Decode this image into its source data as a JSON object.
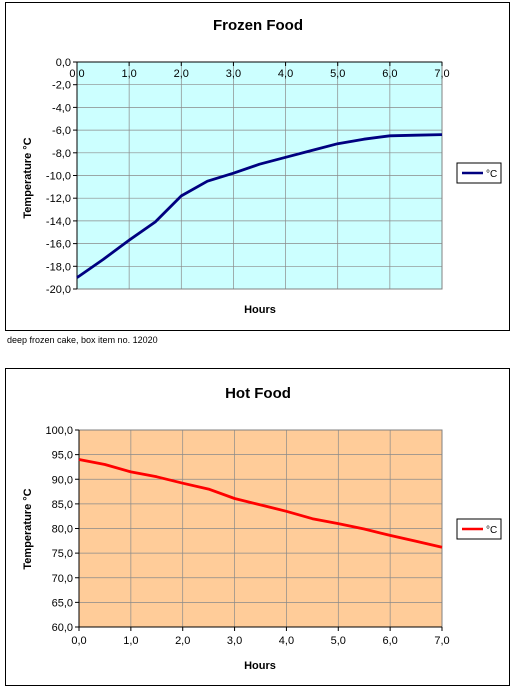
{
  "caption": "deep frozen cake, box item no. 12020",
  "chart_data": [
    {
      "type": "line",
      "title": "Frozen Food",
      "xlabel": "Hours",
      "ylabel": "Temperature °C",
      "xlim": [
        0,
        7
      ],
      "ylim": [
        -20,
        0
      ],
      "x_ticks": [
        "0,0",
        "1,0",
        "2,0",
        "3,0",
        "4,0",
        "5,0",
        "6,0",
        "7,0"
      ],
      "y_ticks": [
        "0,0",
        "-2,0",
        "-4,0",
        "-6,0",
        "-8,0",
        "-10,0",
        "-12,0",
        "-14,0",
        "-16,0",
        "-18,0",
        "-20,0"
      ],
      "x_axis_position": "top",
      "grid": true,
      "plot_background": "#ccffff",
      "legend_position": "right",
      "series": [
        {
          "name": "°C",
          "color": "#000080",
          "x": [
            0,
            0.5,
            1.0,
            1.5,
            2.0,
            2.5,
            3.0,
            3.5,
            4.0,
            4.5,
            5.0,
            5.5,
            6.0,
            6.5,
            7.0
          ],
          "y": [
            -19.0,
            -17.4,
            -15.7,
            -14.1,
            -11.8,
            -10.5,
            -9.8,
            -9.0,
            -8.4,
            -7.8,
            -7.2,
            -6.8,
            -6.5,
            -6.45,
            -6.4
          ]
        }
      ]
    },
    {
      "type": "line",
      "title": "Hot Food",
      "xlabel": "Hours",
      "ylabel": "Temperature °C",
      "xlim": [
        0,
        7
      ],
      "ylim": [
        60,
        100
      ],
      "x_ticks": [
        "0,0",
        "1,0",
        "2,0",
        "3,0",
        "4,0",
        "5,0",
        "6,0",
        "7,0"
      ],
      "y_ticks": [
        "100,0",
        "95,0",
        "90,0",
        "85,0",
        "80,0",
        "75,0",
        "70,0",
        "65,0",
        "60,0"
      ],
      "x_axis_position": "bottom",
      "grid": true,
      "plot_background": "#ffcc99",
      "legend_position": "right",
      "series": [
        {
          "name": "°C",
          "color": "#ff0000",
          "x": [
            0,
            0.5,
            1.0,
            1.5,
            2.0,
            2.5,
            3.0,
            3.5,
            4.0,
            4.5,
            5.0,
            5.5,
            6.0,
            6.5,
            7.0
          ],
          "y": [
            94.0,
            93.0,
            91.5,
            90.5,
            89.2,
            88.0,
            86.1,
            84.8,
            83.5,
            82.0,
            81.0,
            79.9,
            78.6,
            77.4,
            76.2
          ]
        }
      ]
    }
  ]
}
